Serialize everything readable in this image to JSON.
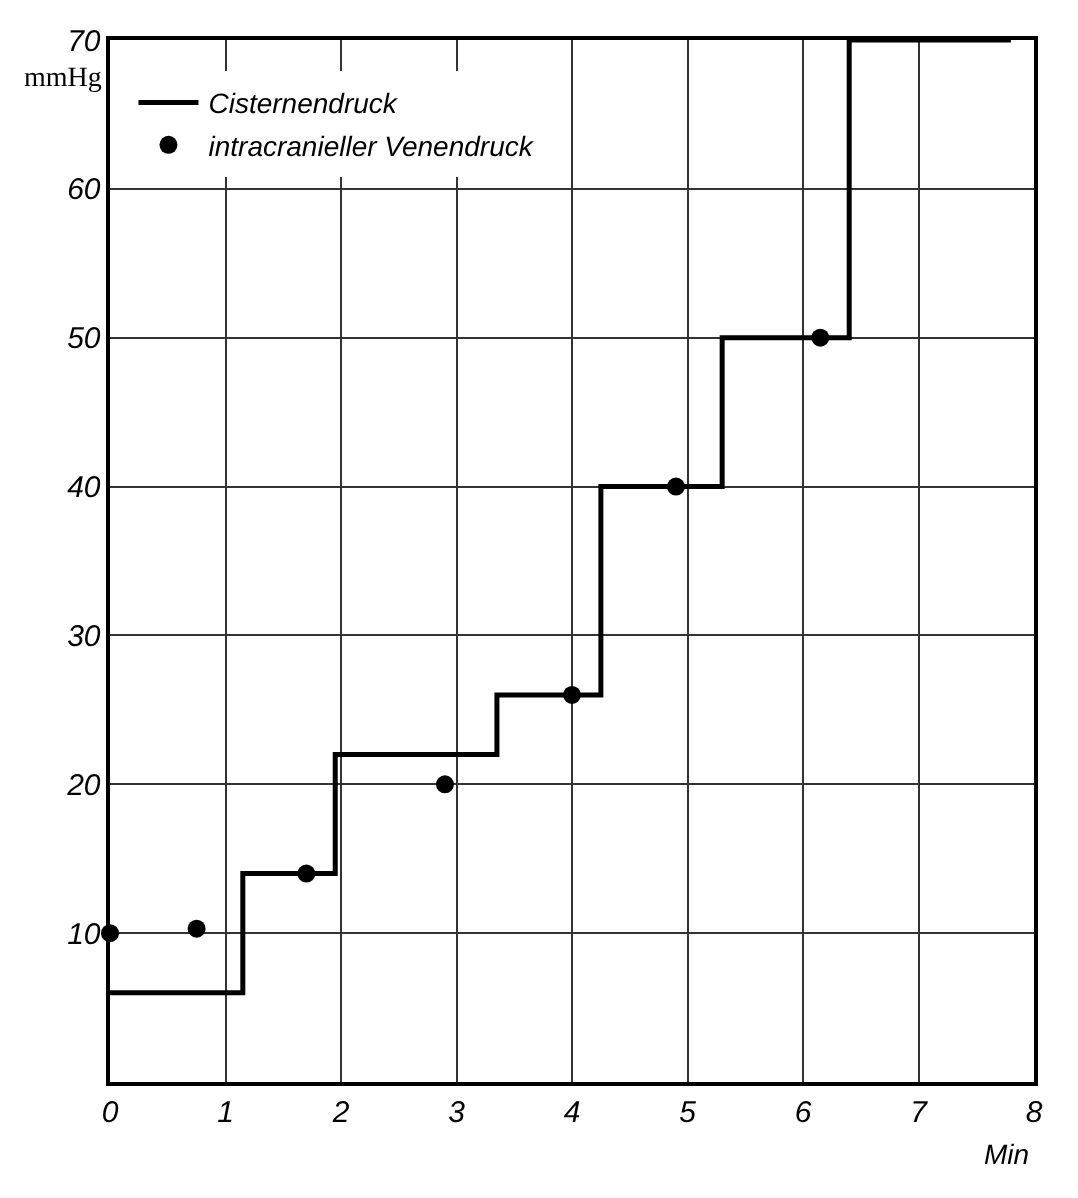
{
  "chart_data": {
    "type": "step",
    "xlabel": "Min",
    "ylabel": "mmHg",
    "xlim": [
      0,
      8
    ],
    "ylim": [
      0,
      70
    ],
    "xticks": [
      0,
      1,
      2,
      3,
      4,
      5,
      6,
      7,
      8
    ],
    "yticks": [
      10,
      20,
      30,
      40,
      50,
      60,
      70
    ],
    "grid": true,
    "legend": "top left",
    "series": [
      {
        "name": "Cisternendruck",
        "color": "#000000",
        "marker": "none",
        "line_style": "solid",
        "x": [
          0,
          1.15,
          1.95,
          3.35,
          4.25,
          5.3,
          6.4,
          7.8
        ],
        "values": [
          6,
          14,
          22,
          26,
          40,
          50,
          70,
          70
        ]
      },
      {
        "name": "intracranieller Venendruck",
        "type": "scatter",
        "color": "#000000",
        "marker": "circle",
        "x": [
          0,
          0.75,
          1.7,
          2.9,
          4,
          4.9,
          6.15
        ],
        "values": [
          10,
          10.3,
          14,
          20,
          26,
          40,
          50
        ]
      }
    ]
  }
}
